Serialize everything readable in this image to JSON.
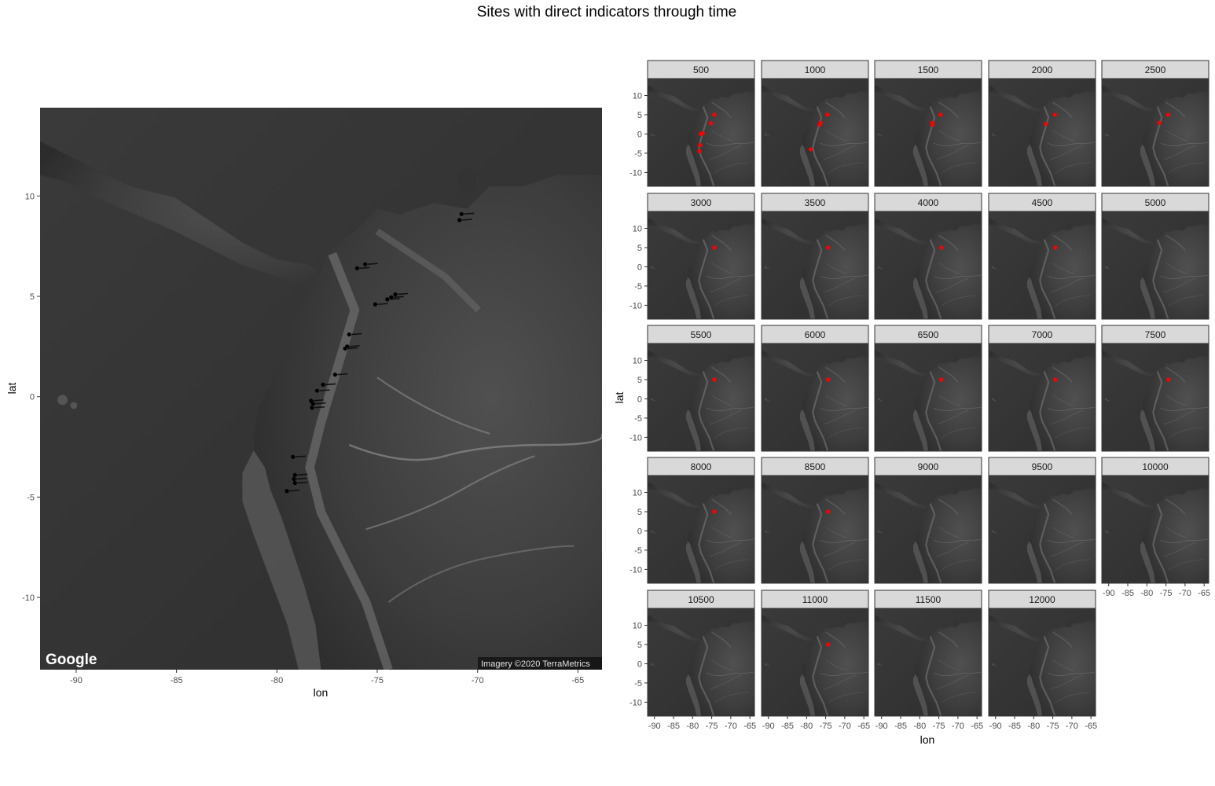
{
  "title": "Sites with direct indicators through time",
  "main_map": {
    "xlabel": "lon",
    "ylabel": "lat",
    "x_ticks": [
      -90,
      -85,
      -80,
      -75,
      -70,
      -65
    ],
    "y_ticks": [
      10,
      5,
      0,
      -5,
      -10
    ],
    "xlim": [
      -91.8,
      -63.8
    ],
    "ylim": [
      -13.6,
      14.4
    ],
    "logo": "Google",
    "credit": "Imagery ©2020 TerraMetrics",
    "sites": [
      {
        "lon": -70.8,
        "lat": 9.1
      },
      {
        "lon": -70.9,
        "lat": 8.8
      },
      {
        "lon": -75.6,
        "lat": 6.6
      },
      {
        "lon": -76.0,
        "lat": 6.4
      },
      {
        "lon": -74.1,
        "lat": 5.1
      },
      {
        "lon": -74.3,
        "lat": 4.95
      },
      {
        "lon": -74.5,
        "lat": 4.85
      },
      {
        "lon": -75.1,
        "lat": 4.6
      },
      {
        "lon": -76.4,
        "lat": 3.1
      },
      {
        "lon": -76.5,
        "lat": 2.5
      },
      {
        "lon": -76.6,
        "lat": 2.4
      },
      {
        "lon": -77.1,
        "lat": 1.1
      },
      {
        "lon": -77.7,
        "lat": 0.6
      },
      {
        "lon": -78.0,
        "lat": 0.3
      },
      {
        "lon": -78.3,
        "lat": -0.2
      },
      {
        "lon": -78.2,
        "lat": -0.35
      },
      {
        "lon": -78.25,
        "lat": -0.55
      },
      {
        "lon": -79.2,
        "lat": -3.0
      },
      {
        "lon": -79.1,
        "lat": -3.9
      },
      {
        "lon": -79.15,
        "lat": -4.1
      },
      {
        "lon": -79.1,
        "lat": -4.3
      },
      {
        "lon": -79.5,
        "lat": -4.7
      }
    ]
  },
  "facets": {
    "xlabel": "lon",
    "ylabel": "lat",
    "x_ticks": [
      -90,
      -85,
      -80,
      -75,
      -70,
      -65
    ],
    "y_ticks": [
      10,
      5,
      0,
      -5,
      -10
    ],
    "xlim": [
      -91.8,
      -63.8
    ],
    "ylim": [
      -13.6,
      14.4
    ],
    "point_color": "#ff0000",
    "panels": [
      {
        "label": "500",
        "sites": [
          [
            -74.3,
            5.0
          ],
          [
            -75.2,
            2.8
          ],
          [
            -77.3,
            0.2
          ],
          [
            -78.0,
            -2.9
          ],
          [
            -78.2,
            -4.5
          ],
          [
            -77.8,
            0.0
          ]
        ]
      },
      {
        "label": "1000",
        "sites": [
          [
            -74.5,
            5.0
          ],
          [
            -76.3,
            2.9
          ],
          [
            -76.5,
            2.4
          ],
          [
            -78.9,
            -4.0
          ]
        ]
      },
      {
        "label": "1500",
        "sites": [
          [
            -74.5,
            5.0
          ],
          [
            -76.7,
            2.9
          ],
          [
            -76.6,
            2.4
          ]
        ]
      },
      {
        "label": "2000",
        "sites": [
          [
            -74.4,
            5.0
          ],
          [
            -76.8,
            2.6
          ]
        ]
      },
      {
        "label": "2500",
        "sites": [
          [
            -74.4,
            5.0
          ],
          [
            -76.7,
            2.9
          ]
        ]
      },
      {
        "label": "3000",
        "sites": [
          [
            -74.3,
            5.0
          ]
        ]
      },
      {
        "label": "3500",
        "sites": [
          [
            -74.3,
            5.0
          ]
        ]
      },
      {
        "label": "4000",
        "sites": [
          [
            -74.3,
            5.0
          ]
        ]
      },
      {
        "label": "4500",
        "sites": [
          [
            -74.3,
            5.0
          ]
        ]
      },
      {
        "label": "5000",
        "sites": []
      },
      {
        "label": "5500",
        "sites": [
          [
            -74.3,
            5.0
          ]
        ]
      },
      {
        "label": "6000",
        "sites": [
          [
            -74.3,
            5.0
          ]
        ]
      },
      {
        "label": "6500",
        "sites": [
          [
            -74.3,
            5.0
          ]
        ]
      },
      {
        "label": "7000",
        "sites": [
          [
            -74.3,
            5.0
          ]
        ]
      },
      {
        "label": "7500",
        "sites": [
          [
            -74.3,
            5.0
          ]
        ]
      },
      {
        "label": "8000",
        "sites": [
          [
            -74.3,
            5.0
          ]
        ]
      },
      {
        "label": "8500",
        "sites": [
          [
            -74.3,
            5.0
          ]
        ]
      },
      {
        "label": "9000",
        "sites": []
      },
      {
        "label": "9500",
        "sites": []
      },
      {
        "label": "10000",
        "sites": []
      },
      {
        "label": "10500",
        "sites": []
      },
      {
        "label": "11000",
        "sites": [
          [
            -74.3,
            5.0
          ]
        ]
      },
      {
        "label": "11500",
        "sites": []
      },
      {
        "label": "12000",
        "sites": []
      }
    ]
  }
}
